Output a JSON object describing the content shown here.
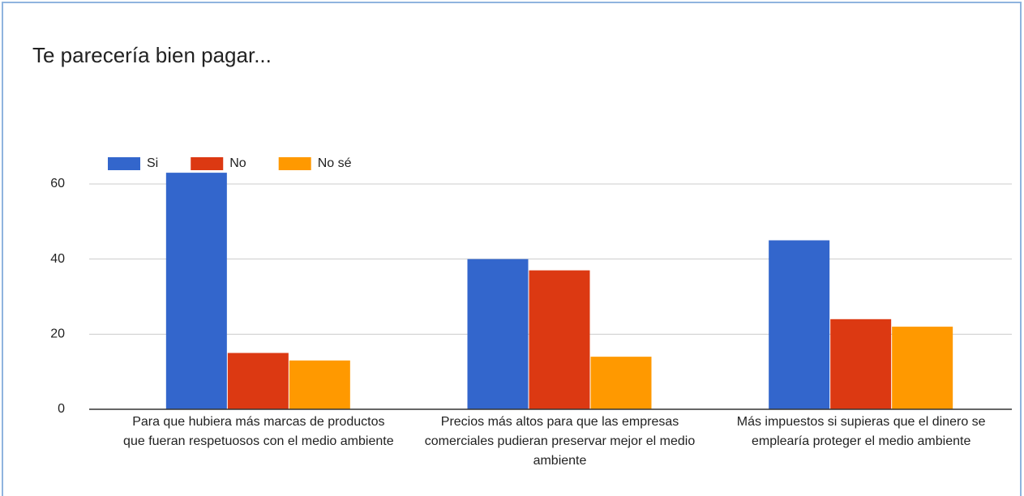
{
  "chart_data": {
    "type": "bar",
    "title": "Te parecería bien pagar...",
    "categories": [
      "Para que hubiera más marcas de productos que fueran respetuosos con el medio ambiente",
      "Precios más altos para que las empresas comerciales pudieran preservar mejor el medio ambiente",
      "Más impuestos si supieras que el dinero se emplearía proteger el medio ambiente"
    ],
    "series": [
      {
        "name": "Si",
        "color": "#3366cc",
        "values": [
          63,
          40,
          45
        ]
      },
      {
        "name": "No",
        "color": "#dc3912",
        "values": [
          15,
          37,
          24
        ]
      },
      {
        "name": "No sé",
        "color": "#ff9900",
        "values": [
          13,
          14,
          22
        ]
      }
    ],
    "ylim": [
      0,
      65
    ],
    "yticks": [
      0,
      20,
      40,
      60
    ],
    "grid": true,
    "legend": "top-left"
  }
}
